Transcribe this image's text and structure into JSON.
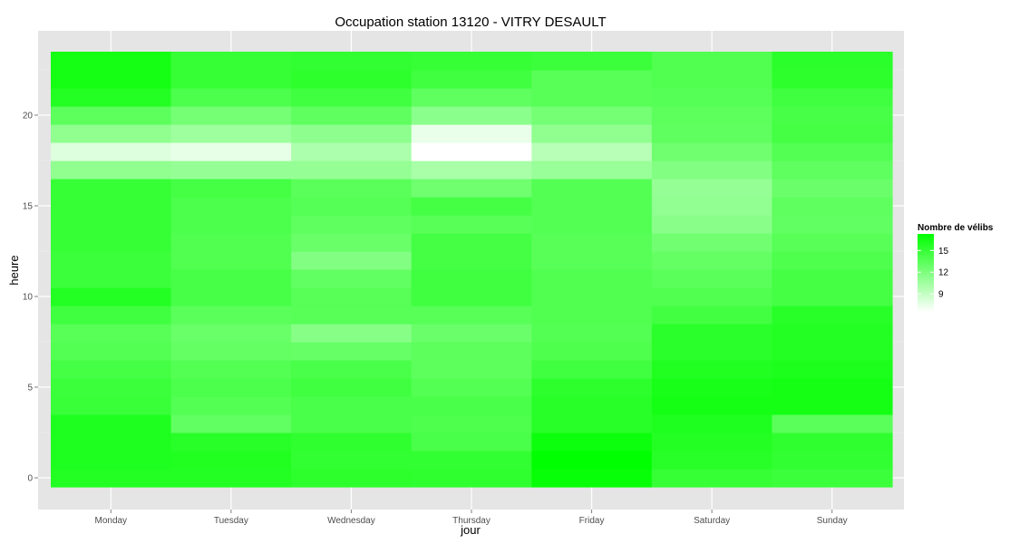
{
  "chart_data": {
    "type": "heatmap",
    "title": "Occupation station 13120 - VITRY DESAULT",
    "xlabel": "jour",
    "ylabel": "heure",
    "x_categories": [
      "Monday",
      "Tuesday",
      "Wednesday",
      "Thursday",
      "Friday",
      "Saturday",
      "Sunday"
    ],
    "y_range": [
      -0.5,
      23.5
    ],
    "y_ticks": [
      0,
      5,
      10,
      15,
      20
    ],
    "y_tick_labels": [
      "0",
      "5",
      "10",
      "15",
      "20"
    ],
    "grid": true,
    "legend": {
      "title": "Nombre de vélibs",
      "placement": "right",
      "min": 6.5,
      "max": 17.3,
      "low_color": "#ffffff",
      "high_color": "#00ff00",
      "ticks": [
        9,
        12,
        15
      ],
      "tick_labels": [
        "9",
        "12",
        "15"
      ]
    },
    "values": [
      [
        15.8,
        15.8,
        15.4,
        15.3,
        17.0,
        15.0,
        14.8
      ],
      [
        16.0,
        15.9,
        15.2,
        15.2,
        17.3,
        15.6,
        15.2
      ],
      [
        16.0,
        15.6,
        15.3,
        14.2,
        16.8,
        15.8,
        15.3
      ],
      [
        16.0,
        13.2,
        14.2,
        14.0,
        15.6,
        16.0,
        13.5
      ],
      [
        14.9,
        13.8,
        14.2,
        14.2,
        15.6,
        16.4,
        16.4
      ],
      [
        14.8,
        14.1,
        14.6,
        13.8,
        15.4,
        16.3,
        16.4
      ],
      [
        14.4,
        13.8,
        14.2,
        13.4,
        14.6,
        15.9,
        16.1
      ],
      [
        13.8,
        13.1,
        13.0,
        13.4,
        14.0,
        15.5,
        15.8
      ],
      [
        13.6,
        12.9,
        11.6,
        12.8,
        13.8,
        15.5,
        15.8
      ],
      [
        14.6,
        13.5,
        13.6,
        13.6,
        13.9,
        14.5,
        15.6
      ],
      [
        15.8,
        14.3,
        13.6,
        14.6,
        13.9,
        13.9,
        14.4
      ],
      [
        14.8,
        14.3,
        13.2,
        14.6,
        13.9,
        13.5,
        14.4
      ],
      [
        14.8,
        13.9,
        11.8,
        14.4,
        13.6,
        13.1,
        14.0
      ],
      [
        15.0,
        13.9,
        12.9,
        14.4,
        13.6,
        12.5,
        13.6
      ],
      [
        15.0,
        14.1,
        13.3,
        13.6,
        13.8,
        11.5,
        13.2
      ],
      [
        15.0,
        14.1,
        13.7,
        14.4,
        13.8,
        11.1,
        13.3
      ],
      [
        15.0,
        14.4,
        13.5,
        12.6,
        13.8,
        11.0,
        12.8
      ],
      [
        11.2,
        11.0,
        11.0,
        10.2,
        10.8,
        11.8,
        13.3
      ],
      [
        7.9,
        7.5,
        10.0,
        6.5,
        9.5,
        12.6,
        13.8
      ],
      [
        11.2,
        10.6,
        11.3,
        7.4,
        11.2,
        13.3,
        14.4
      ],
      [
        13.4,
        12.4,
        13.3,
        11.4,
        12.4,
        13.4,
        14.3
      ],
      [
        15.8,
        14.1,
        14.6,
        13.3,
        13.6,
        13.7,
        14.6
      ],
      [
        16.4,
        15.0,
        15.4,
        14.6,
        13.6,
        13.9,
        15.4
      ],
      [
        16.4,
        15.0,
        15.2,
        15.0,
        14.8,
        13.9,
        15.5
      ]
    ]
  }
}
